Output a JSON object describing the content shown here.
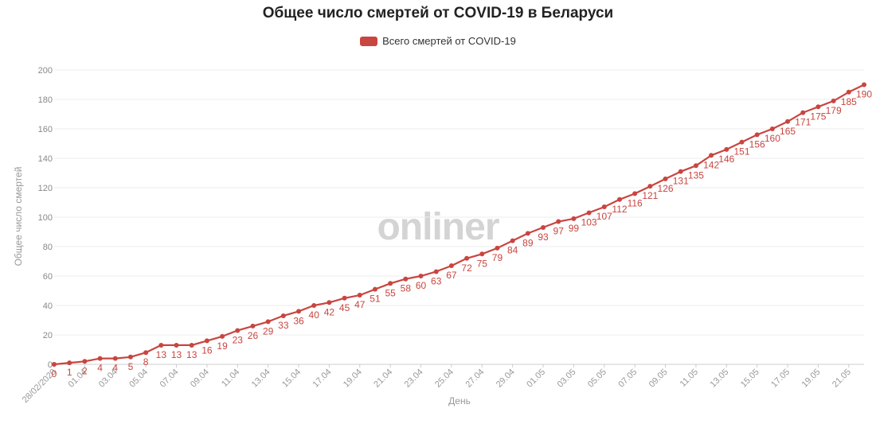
{
  "chart_data": {
    "type": "line",
    "title": "Общее число смертей от COVID-19 в Беларуси",
    "xlabel": "День",
    "ylabel": "Общее число смертей",
    "ylim": [
      0,
      200
    ],
    "yticks": [
      0,
      20,
      40,
      60,
      80,
      100,
      120,
      140,
      160,
      180,
      200
    ],
    "grid": true,
    "legend_position": "top-center",
    "watermark": "onliner",
    "x_tick_labels": [
      "28/02/2020",
      "01.04",
      "03.04",
      "05.04",
      "07.04",
      "09.04",
      "11.04",
      "13.04",
      "15.04",
      "17.04",
      "19.04",
      "21.04",
      "23.04",
      "25.04",
      "27.04",
      "29.04",
      "01.05",
      "03.05",
      "05.05",
      "07.05",
      "09.05",
      "11.05",
      "13.05",
      "15.05",
      "17.05",
      "19.05",
      "21.05"
    ],
    "series": [
      {
        "name": "Всего смертей от COVID-19",
        "color": "#c9453f",
        "values": [
          0,
          1,
          2,
          4,
          4,
          5,
          8,
          13,
          13,
          13,
          16,
          19,
          23,
          26,
          29,
          33,
          36,
          40,
          42,
          45,
          47,
          51,
          55,
          58,
          60,
          63,
          67,
          72,
          75,
          79,
          84,
          89,
          93,
          97,
          99,
          103,
          107,
          112,
          116,
          121,
          126,
          131,
          135,
          142,
          146,
          151,
          156,
          160,
          165,
          171,
          175,
          179,
          185,
          190
        ]
      }
    ]
  }
}
